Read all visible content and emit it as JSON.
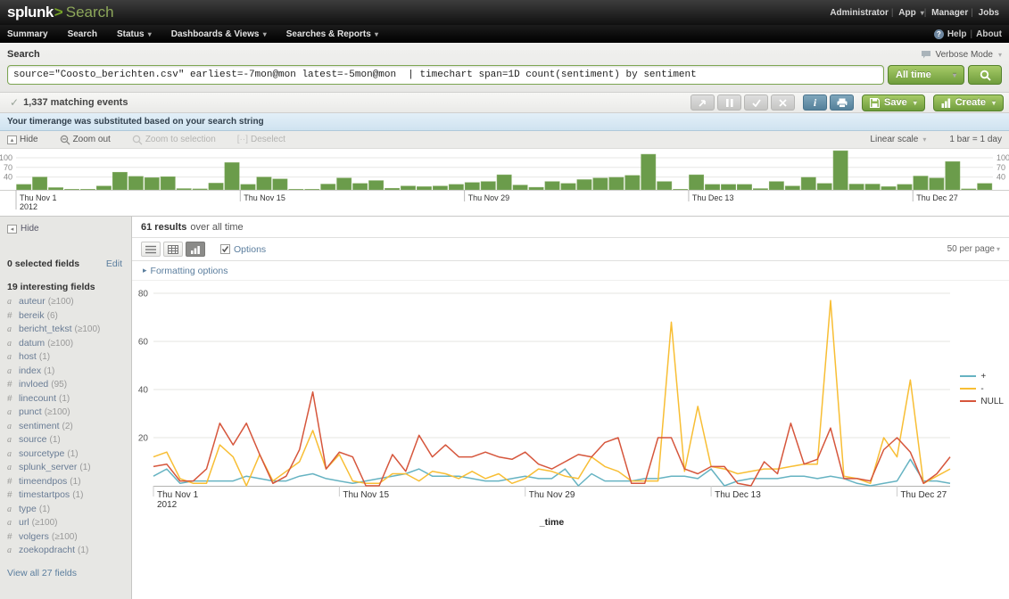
{
  "topbar": {
    "logo": "splunk",
    "logo_caret": ">",
    "app_name": "Search",
    "links": [
      "Administrator",
      "App",
      "Manager",
      "Jobs"
    ]
  },
  "nav": {
    "items": [
      {
        "label": "Summary",
        "caret": false
      },
      {
        "label": "Search",
        "caret": false
      },
      {
        "label": "Status",
        "caret": true
      },
      {
        "label": "Dashboards & Views",
        "caret": true
      },
      {
        "label": "Searches & Reports",
        "caret": true
      }
    ],
    "help": "Help",
    "about": "About"
  },
  "search": {
    "label": "Search",
    "verbose_mode": "Verbose Mode",
    "query": "source=\"Coosto_berichten.csv\" earliest=-7mon@mon latest=-5mon@mon  | timechart span=1D count(sentiment) by sentiment",
    "time_range": "All time"
  },
  "status": {
    "matching": "1,337 matching events",
    "notice": "Your timerange was substituted based on your search string",
    "save_label": "Save",
    "create_label": "Create"
  },
  "timeline": {
    "controls": [
      "Hide",
      "Zoom out",
      "Zoom to selection",
      "Deselect"
    ],
    "scale_label": "Linear scale",
    "bar_label": "1 bar = 1 day"
  },
  "sidebar": {
    "hide": "Hide",
    "selected": "0 selected fields",
    "edit": "Edit",
    "interesting": "19 interesting fields",
    "fields": [
      {
        "t": "a",
        "name": "auteur",
        "count": "≥100"
      },
      {
        "t": "#",
        "name": "bereik",
        "count": "6"
      },
      {
        "t": "a",
        "name": "bericht_tekst",
        "count": "≥100"
      },
      {
        "t": "a",
        "name": "datum",
        "count": "≥100"
      },
      {
        "t": "a",
        "name": "host",
        "count": "1"
      },
      {
        "t": "a",
        "name": "index",
        "count": "1"
      },
      {
        "t": "#",
        "name": "invloed",
        "count": "95"
      },
      {
        "t": "#",
        "name": "linecount",
        "count": "1"
      },
      {
        "t": "a",
        "name": "punct",
        "count": "≥100"
      },
      {
        "t": "a",
        "name": "sentiment",
        "count": "2"
      },
      {
        "t": "a",
        "name": "source",
        "count": "1"
      },
      {
        "t": "a",
        "name": "sourcetype",
        "count": "1"
      },
      {
        "t": "a",
        "name": "splunk_server",
        "count": "1"
      },
      {
        "t": "#",
        "name": "timeendpos",
        "count": "1"
      },
      {
        "t": "#",
        "name": "timestartpos",
        "count": "1"
      },
      {
        "t": "a",
        "name": "type",
        "count": "1"
      },
      {
        "t": "a",
        "name": "url",
        "count": "≥100"
      },
      {
        "t": "#",
        "name": "volgers",
        "count": "≥100"
      },
      {
        "t": "a",
        "name": "zoekopdracht",
        "count": "1"
      }
    ],
    "view_all": "View all 27 fields"
  },
  "results": {
    "count": "61 results",
    "count_suffix": "over all time",
    "options": "Options",
    "per_page": "50 per page",
    "formatting": "Formatting options"
  },
  "chart_data": [
    {
      "type": "bar",
      "name": "event-timeline",
      "title": "",
      "bar_unit": "1 bar = 1 day",
      "color": "#6b9c4b",
      "yticks": [
        40,
        70,
        100
      ],
      "ylim": [
        0,
        125
      ],
      "grid": true,
      "xticks": [
        {
          "day": 0,
          "label": "Thu Nov 1",
          "sublabel": "2012"
        },
        {
          "day": 14,
          "label": "Thu Nov 15"
        },
        {
          "day": 28,
          "label": "Thu Nov 29"
        },
        {
          "day": 42,
          "label": "Thu Dec 13"
        },
        {
          "day": 56,
          "label": "Thu Dec 27"
        }
      ],
      "x_dates": [
        "Nov 1",
        "Nov 2",
        "Nov 3",
        "Nov 4",
        "Nov 5",
        "Nov 6",
        "Nov 7",
        "Nov 8",
        "Nov 9",
        "Nov 10",
        "Nov 11",
        "Nov 12",
        "Nov 13",
        "Nov 14",
        "Nov 15",
        "Nov 16",
        "Nov 17",
        "Nov 18",
        "Nov 19",
        "Nov 20",
        "Nov 21",
        "Nov 22",
        "Nov 23",
        "Nov 24",
        "Nov 25",
        "Nov 26",
        "Nov 27",
        "Nov 28",
        "Nov 29",
        "Nov 30",
        "Dec 1",
        "Dec 2",
        "Dec 3",
        "Dec 4",
        "Dec 5",
        "Dec 6",
        "Dec 7",
        "Dec 8",
        "Dec 9",
        "Dec 10",
        "Dec 11",
        "Dec 12",
        "Dec 13",
        "Dec 14",
        "Dec 15",
        "Dec 16",
        "Dec 17",
        "Dec 18",
        "Dec 19",
        "Dec 20",
        "Dec 21",
        "Dec 22",
        "Dec 23",
        "Dec 24",
        "Dec 25",
        "Dec 26",
        "Dec 27",
        "Dec 28",
        "Dec 29",
        "Dec 30",
        "Dec 31"
      ],
      "values": [
        17,
        40,
        7,
        2,
        2,
        12,
        55,
        42,
        38,
        41,
        4,
        3,
        21,
        85,
        17,
        40,
        34,
        2,
        2,
        18,
        37,
        20,
        29,
        5,
        12,
        10,
        12,
        17,
        23,
        26,
        47,
        15,
        8,
        26,
        20,
        32,
        37,
        39,
        45,
        111,
        26,
        2,
        47,
        17,
        17,
        17,
        4,
        26,
        12,
        39,
        20,
        122,
        18,
        18,
        10,
        17,
        43,
        37,
        88,
        3,
        20
      ]
    },
    {
      "type": "line",
      "name": "sentiment-timechart",
      "title": "",
      "xlabel": "_time",
      "ylim": [
        0,
        80
      ],
      "yticks": [
        20,
        40,
        60,
        80
      ],
      "grid": true,
      "legend_position": "right",
      "xticks": [
        {
          "day": 0,
          "label": "Thu Nov 1",
          "sublabel": "2012"
        },
        {
          "day": 14,
          "label": "Thu Nov 15"
        },
        {
          "day": 28,
          "label": "Thu Nov 29"
        },
        {
          "day": 42,
          "label": "Thu Dec 13"
        },
        {
          "day": 56,
          "label": "Thu Dec 27"
        }
      ],
      "x_dates": [
        "Nov 1",
        "Nov 2",
        "Nov 3",
        "Nov 4",
        "Nov 5",
        "Nov 6",
        "Nov 7",
        "Nov 8",
        "Nov 9",
        "Nov 10",
        "Nov 11",
        "Nov 12",
        "Nov 13",
        "Nov 14",
        "Nov 15",
        "Nov 16",
        "Nov 17",
        "Nov 18",
        "Nov 19",
        "Nov 20",
        "Nov 21",
        "Nov 22",
        "Nov 23",
        "Nov 24",
        "Nov 25",
        "Nov 26",
        "Nov 27",
        "Nov 28",
        "Nov 29",
        "Nov 30",
        "Dec 1",
        "Dec 2",
        "Dec 3",
        "Dec 4",
        "Dec 5",
        "Dec 6",
        "Dec 7",
        "Dec 8",
        "Dec 9",
        "Dec 10",
        "Dec 11",
        "Dec 12",
        "Dec 13",
        "Dec 14",
        "Dec 15",
        "Dec 16",
        "Dec 17",
        "Dec 18",
        "Dec 19",
        "Dec 20",
        "Dec 21",
        "Dec 22",
        "Dec 23",
        "Dec 24",
        "Dec 25",
        "Dec 26",
        "Dec 27",
        "Dec 28",
        "Dec 29",
        "Dec 30",
        "Dec 31"
      ],
      "series": [
        {
          "name": "+",
          "color": "#66b3c2",
          "values": [
            4,
            7,
            1,
            2,
            2,
            2,
            2,
            4,
            3,
            2,
            2,
            4,
            5,
            3,
            2,
            1,
            2,
            3,
            4,
            5,
            7,
            4,
            4,
            4,
            3,
            2,
            2,
            3,
            4,
            3,
            3,
            7,
            0,
            5,
            2,
            2,
            2,
            3,
            3,
            4,
            4,
            3,
            7,
            0,
            2,
            3,
            3,
            3,
            4,
            4,
            3,
            4,
            3,
            1,
            0,
            1,
            2,
            11,
            2,
            2,
            1
          ]
        },
        {
          "name": "-",
          "color": "#f8be34",
          "values": [
            12,
            14,
            3,
            1,
            1,
            17,
            12,
            0,
            13,
            2,
            6,
            10,
            23,
            7,
            13,
            2,
            1,
            1,
            5,
            5,
            2,
            6,
            5,
            3,
            6,
            3,
            5,
            1,
            3,
            7,
            6,
            4,
            3,
            12,
            8,
            6,
            2,
            2,
            2,
            68,
            6,
            33,
            8,
            7,
            5,
            6,
            7,
            7,
            8,
            9,
            9,
            77,
            4,
            3,
            1,
            20,
            12,
            44,
            1,
            4,
            7
          ]
        },
        {
          "name": "NULL",
          "color": "#d6563c",
          "values": [
            8,
            9,
            2,
            2,
            7,
            26,
            17,
            26,
            13,
            1,
            4,
            15,
            39,
            7,
            14,
            12,
            0,
            0,
            13,
            6,
            21,
            12,
            17,
            12,
            12,
            14,
            12,
            11,
            14,
            9,
            7,
            10,
            13,
            12,
            18,
            20,
            1,
            1,
            20,
            20,
            7,
            5,
            8,
            8,
            1,
            0,
            10,
            5,
            26,
            9,
            11,
            24,
            3,
            3,
            2,
            15,
            20,
            14,
            1,
            5,
            12
          ]
        }
      ]
    }
  ]
}
